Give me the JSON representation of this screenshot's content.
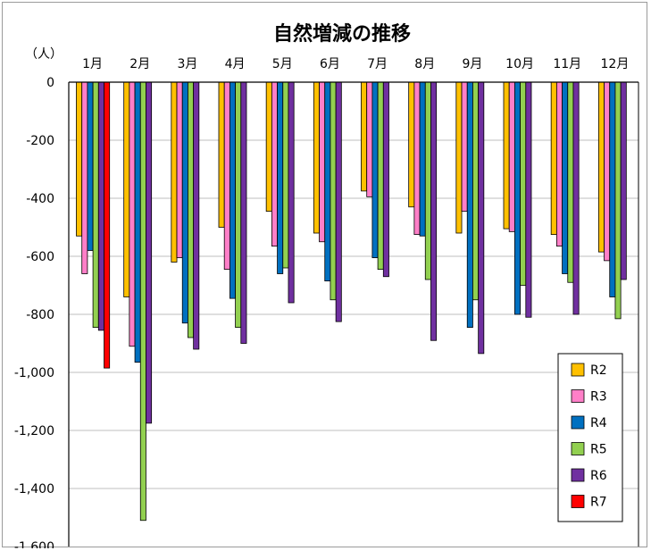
{
  "chart_data": {
    "type": "bar",
    "title": "自然増減の推移",
    "ylabel": "（人）",
    "xlabel": "",
    "categories": [
      "1月",
      "2月",
      "3月",
      "4月",
      "5月",
      "6月",
      "7月",
      "8月",
      "9月",
      "10月",
      "11月",
      "12月"
    ],
    "ylim": [
      -1600,
      0
    ],
    "yticks": [
      0,
      -200,
      -400,
      -600,
      -800,
      -1000,
      -1200,
      -1400,
      -1600
    ],
    "ytick_labels": [
      "0",
      "-200",
      "-400",
      "-600",
      "-800",
      "-1,000",
      "-1,200",
      "-1,400",
      "-1,600"
    ],
    "grid": true,
    "legend_position": "bottom-right",
    "series": [
      {
        "name": "R2",
        "color": "#FFC000",
        "values": [
          -530,
          -740,
          -620,
          -500,
          -445,
          -520,
          -375,
          -430,
          -520,
          -505,
          -525,
          -585
        ]
      },
      {
        "name": "R3",
        "color": "#FF7FC8",
        "values": [
          -660,
          -910,
          -605,
          -645,
          -565,
          -550,
          -395,
          -525,
          -445,
          -515,
          -565,
          -615
        ]
      },
      {
        "name": "R4",
        "color": "#0070C0",
        "values": [
          -580,
          -965,
          -830,
          -745,
          -660,
          -685,
          -605,
          -530,
          -845,
          -800,
          -660,
          -740
        ]
      },
      {
        "name": "R5",
        "color": "#92D050",
        "values": [
          -845,
          -1510,
          -880,
          -845,
          -640,
          -750,
          -645,
          -680,
          -750,
          -700,
          -690,
          -815
        ]
      },
      {
        "name": "R6",
        "color": "#7030A0",
        "values": [
          -855,
          -1175,
          -920,
          -900,
          -760,
          -825,
          -670,
          -890,
          -935,
          -810,
          -800,
          -680
        ]
      },
      {
        "name": "R7",
        "color": "#FF0000",
        "values": [
          -985,
          null,
          null,
          null,
          null,
          null,
          null,
          null,
          null,
          null,
          null,
          null
        ]
      }
    ]
  }
}
